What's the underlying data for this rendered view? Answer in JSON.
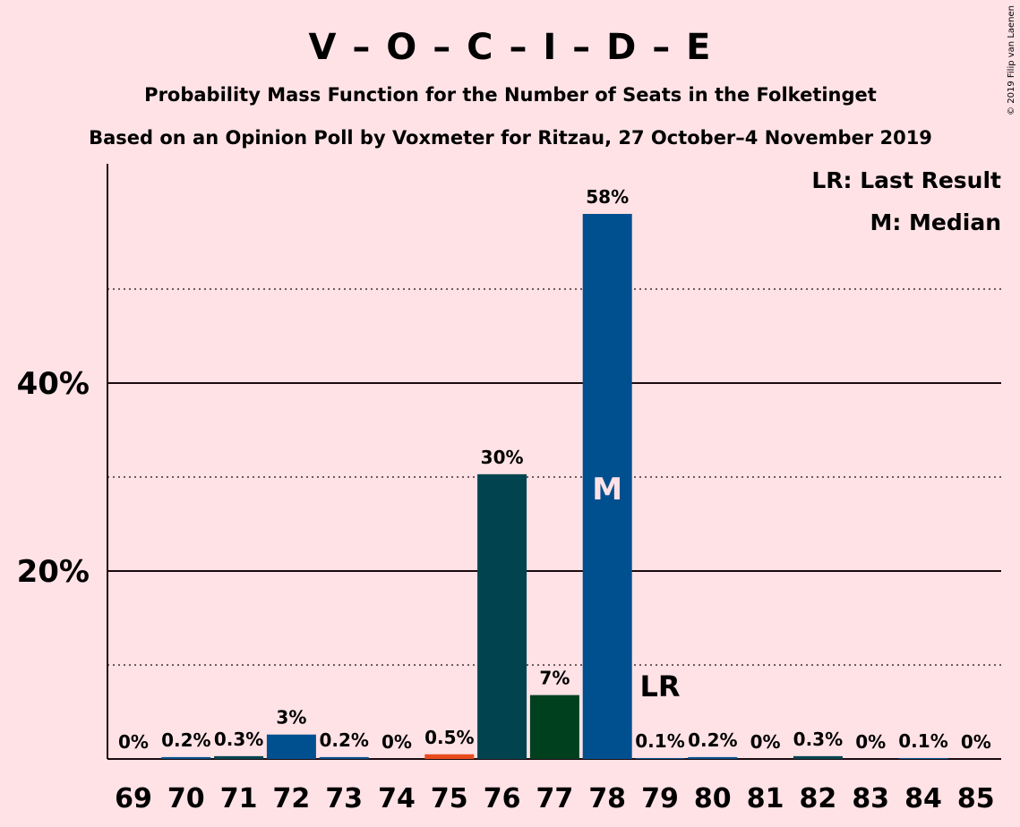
{
  "chart_data": {
    "type": "bar",
    "title": "V – O – C – I – D – E",
    "subtitle_1": "Probability Mass Function for the Number of Seats in the Folketinget",
    "subtitle_2": "Based on an Opinion Poll by Voxmeter for Ritzau, 27 October–4 November 2019",
    "copyright": "© 2019 Filip van Laenen",
    "legend": {
      "last_result": "LR: Last Result",
      "median": "M: Median",
      "placement": "top-right"
    },
    "categories": [
      "69",
      "70",
      "71",
      "72",
      "73",
      "74",
      "75",
      "76",
      "77",
      "78",
      "79",
      "80",
      "81",
      "82",
      "83",
      "84",
      "85"
    ],
    "values": [
      0,
      0.2,
      0.3,
      2.6,
      0.2,
      0,
      0.5,
      30.3,
      6.8,
      58.0,
      0.1,
      0.2,
      0,
      0.3,
      0,
      0.1,
      0
    ],
    "value_labels": [
      "0%",
      "0.2%",
      "0.3%",
      "3%",
      "0.2%",
      "0%",
      "0.5%",
      "30%",
      "7%",
      "58%",
      "0.1%",
      "0.2%",
      "0%",
      "0.3%",
      "0%",
      "0.1%",
      "0%"
    ],
    "bar_colors": [
      "#00508f",
      "#00508f",
      "#01444f",
      "#00508f",
      "#00508f",
      "#00508f",
      "#e84b1c",
      "#01444f",
      "#01401f",
      "#00508f",
      "#00508f",
      "#00508f",
      "#00508f",
      "#01444f",
      "#00508f",
      "#00508f",
      "#00508f"
    ],
    "yticks": [
      {
        "value": 20,
        "label": "20%"
      },
      {
        "value": 40,
        "label": "40%"
      }
    ],
    "minor_gridlines": [
      10,
      30,
      50
    ],
    "ylim": [
      0,
      63
    ],
    "median_seat": "78",
    "median_marker": "M",
    "last_result_seat": "79",
    "last_result_marker": "LR",
    "grid": true
  }
}
